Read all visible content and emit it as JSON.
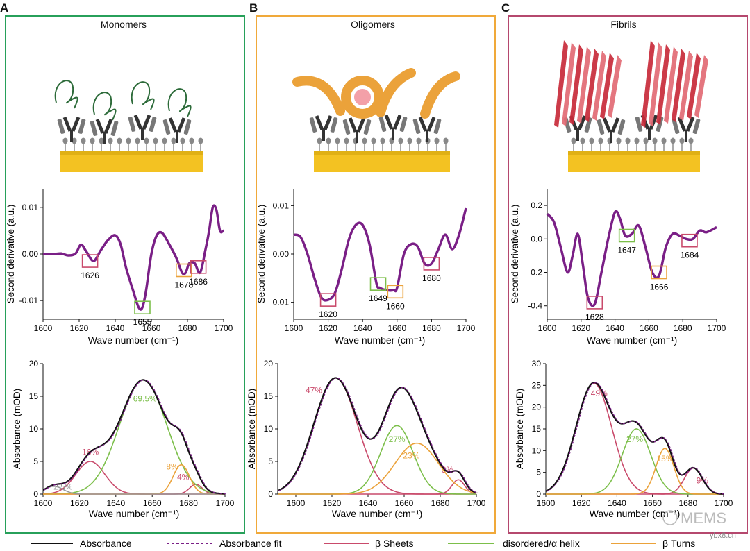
{
  "colors": {
    "sheet": "#c94a6b",
    "helix": "#7cbf4a",
    "turn": "#eba23a",
    "purple": "#7a1f86",
    "dark": "#111111",
    "panelA": "#27a05a",
    "panelB": "#f0a93a",
    "panelC": "#b5486e",
    "gold": "#f3c222",
    "red": "#c82a3a"
  },
  "watermark": {
    "wechat": "MEMS",
    "site": "ybx8.cn"
  },
  "legend": [
    "Absorbance",
    "Absorbance fit",
    "β Sheets",
    "disordered/α helix",
    "β Turns"
  ],
  "panels": [
    {
      "letter": "A",
      "title": "Monomers"
    },
    {
      "letter": "B",
      "title": "Oligomers"
    },
    {
      "letter": "C",
      "title": "Fibrils"
    }
  ],
  "chart_data": [
    {
      "id": "A-second",
      "type": "line",
      "panel": "A",
      "xlabel": "Wave number (cm⁻¹)",
      "ylabel": "Second derivative (a.u.)",
      "xlim": [
        1600,
        1700
      ],
      "ylim": [
        -0.014,
        0.014
      ],
      "xticks": [
        1600,
        1620,
        1640,
        1660,
        1680,
        1700
      ],
      "yticks": [
        0.01,
        0.0,
        -0.01
      ],
      "ytick_labels": [
        "0.01",
        "0.00",
        "-0.01"
      ],
      "x": [
        1600,
        1606,
        1610,
        1614,
        1618,
        1621,
        1624,
        1628,
        1632,
        1636,
        1640,
        1643,
        1646,
        1650,
        1653,
        1655,
        1657,
        1660,
        1663,
        1666,
        1670,
        1674,
        1677,
        1679,
        1681,
        1684,
        1687,
        1690,
        1692,
        1694,
        1696,
        1698,
        1700
      ],
      "y": [
        0.0,
        0.0,
        0.0001,
        -0.0003,
        0.0001,
        0.002,
        0.0005,
        -0.0015,
        0.0008,
        0.003,
        0.004,
        0.002,
        -0.003,
        -0.008,
        -0.0115,
        -0.0115,
        -0.008,
        0.0,
        0.004,
        0.0045,
        0.002,
        -0.001,
        -0.004,
        -0.004,
        -0.002,
        -0.002,
        -0.004,
        0.001,
        0.005,
        0.01,
        0.0095,
        0.005,
        0.005
      ],
      "markers": [
        {
          "label": "1626",
          "x": 1626,
          "y": -0.0015,
          "color": "sheet"
        },
        {
          "label": "1655",
          "x": 1655,
          "y": -0.0115,
          "color": "helix"
        },
        {
          "label": "1678",
          "x": 1678,
          "y": -0.0035,
          "color": "turn"
        },
        {
          "label": "1686",
          "x": 1686,
          "y": -0.0028,
          "color": "sheet"
        }
      ]
    },
    {
      "id": "B-second",
      "type": "line",
      "panel": "B",
      "xlabel": "Wave number (cm⁻¹)",
      "ylabel": "Second derivative (a.u.)",
      "xlim": [
        1600,
        1700
      ],
      "ylim": [
        -0.0135,
        0.0135
      ],
      "xticks": [
        1600,
        1620,
        1640,
        1660,
        1680,
        1700
      ],
      "yticks": [
        0.01,
        0.0,
        -0.01
      ],
      "ytick_labels": [
        "0.01",
        "0.00",
        "-0.01"
      ],
      "x": [
        1600,
        1604,
        1608,
        1612,
        1616,
        1620,
        1624,
        1628,
        1632,
        1636,
        1640,
        1644,
        1648,
        1650,
        1654,
        1658,
        1660,
        1664,
        1668,
        1672,
        1676,
        1680,
        1684,
        1688,
        1692,
        1696,
        1700
      ],
      "y": [
        0.004,
        0.0035,
        0.0,
        -0.005,
        -0.009,
        -0.0095,
        -0.008,
        -0.003,
        0.003,
        0.006,
        0.006,
        0.002,
        -0.006,
        -0.007,
        -0.0075,
        -0.0075,
        -0.007,
        0.0,
        0.002,
        0.0015,
        -0.002,
        -0.002,
        0.001,
        0.004,
        0.001,
        0.004,
        0.0095
      ],
      "markers": [
        {
          "label": "1620",
          "x": 1620,
          "y": -0.0095,
          "color": "sheet"
        },
        {
          "label": "1649",
          "x": 1649,
          "y": -0.0062,
          "color": "helix"
        },
        {
          "label": "1660",
          "x": 1659,
          "y": -0.0078,
          "color": "turn"
        },
        {
          "label": "1680",
          "x": 1680,
          "y": -0.002,
          "color": "sheet"
        }
      ]
    },
    {
      "id": "C-second",
      "type": "line",
      "panel": "C",
      "xlabel": "Wave number (cm⁻¹)",
      "ylabel": "Second derivative (a.u.)",
      "xlim": [
        1600,
        1700
      ],
      "ylim": [
        -0.48,
        0.3
      ],
      "xticks": [
        1600,
        1620,
        1640,
        1660,
        1680,
        1700
      ],
      "yticks": [
        0.2,
        0.0,
        -0.2,
        -0.4
      ],
      "ytick_labels": [
        "0.2",
        "0.0",
        "-0.2",
        "-0.4"
      ],
      "x": [
        1600,
        1604,
        1608,
        1612,
        1615,
        1618,
        1621,
        1624,
        1628,
        1632,
        1636,
        1640,
        1643,
        1646,
        1650,
        1654,
        1658,
        1662,
        1666,
        1670,
        1674,
        1678,
        1682,
        1686,
        1690,
        1694,
        1700
      ],
      "y": [
        0.15,
        0.1,
        -0.05,
        -0.2,
        -0.1,
        0.03,
        -0.15,
        -0.35,
        -0.39,
        -0.2,
        0.0,
        0.16,
        0.12,
        0.02,
        0.03,
        0.08,
        -0.05,
        -0.2,
        -0.22,
        -0.05,
        0.03,
        0.02,
        0.0,
        0.0,
        0.05,
        0.04,
        0.07
      ],
      "markers": [
        {
          "label": "1628",
          "x": 1628,
          "y": -0.38,
          "color": "sheet"
        },
        {
          "label": "1647",
          "x": 1647,
          "y": 0.02,
          "color": "helix"
        },
        {
          "label": "1666",
          "x": 1666,
          "y": -0.2,
          "color": "turn"
        },
        {
          "label": "1684",
          "x": 1684,
          "y": -0.01,
          "color": "sheet"
        }
      ]
    },
    {
      "id": "A-abs",
      "type": "area",
      "panel": "A",
      "xlabel": "Wave number (cm⁻¹)",
      "ylabel": "Absorbance (mOD)",
      "xlim": [
        1600,
        1700
      ],
      "ylim": [
        0,
        20
      ],
      "xticks": [
        1600,
        1620,
        1640,
        1660,
        1680,
        1700
      ],
      "yticks": [
        0,
        5,
        10,
        15,
        20
      ],
      "components": [
        {
          "name": "β Sheets",
          "color": "sheet",
          "peaks": [
            [
              1626,
              5,
              8
            ],
            [
              1684,
              1.5,
              3.5
            ]
          ],
          "labels": [
            {
              "text": "16%",
              "x": 1626,
              "y": 6.0
            },
            {
              "text": "4%",
              "x": 1677,
              "y": 2.2
            }
          ]
        },
        {
          "name": "disordered/α helix",
          "color": "helix",
          "peaks": [
            [
              1655,
              17.5,
              13
            ]
          ],
          "labels": [
            {
              "text": "69.5%",
              "x": 1656,
              "y": 14.2
            }
          ]
        },
        {
          "name": "β Turns",
          "color": "turn",
          "peaks": [
            [
              1676,
              4.5,
              4.5
            ]
          ],
          "labels": [
            {
              "text": "8%",
              "x": 1671,
              "y": 3.8
            }
          ]
        },
        {
          "name": "other",
          "color": "#999999",
          "peaks": [
            [
              1606,
              1.2,
              5
            ]
          ],
          "labels": [
            {
              "text": "2.5%",
              "x": 1611,
              "y": 0.7
            }
          ]
        }
      ]
    },
    {
      "id": "B-abs",
      "type": "area",
      "panel": "B",
      "xlabel": "Wave number (cm⁻¹)",
      "ylabel": "Absorbance (mOD)",
      "xlim": [
        1590,
        1700
      ],
      "ylim": [
        0,
        20
      ],
      "xticks": [
        1600,
        1620,
        1640,
        1660,
        1680,
        1700
      ],
      "yticks": [
        0,
        5,
        10,
        15,
        20
      ],
      "components": [
        {
          "name": "β Sheets",
          "color": "sheet",
          "peaks": [
            [
              1622,
              17.8,
              12
            ],
            [
              1690,
              2.2,
              3.5
            ]
          ],
          "labels": [
            {
              "text": "47%",
              "x": 1610,
              "y": 15.5
            },
            {
              "text": "3%",
              "x": 1684,
              "y": 3.3
            }
          ]
        },
        {
          "name": "disordered/α helix",
          "color": "helix",
          "peaks": [
            [
              1656,
              10.5,
              9
            ]
          ],
          "labels": [
            {
              "text": "27%",
              "x": 1656,
              "y": 8.0
            }
          ]
        },
        {
          "name": "β Turns",
          "color": "turn",
          "peaks": [
            [
              1667,
              7.8,
              12
            ]
          ],
          "labels": [
            {
              "text": "23%",
              "x": 1664,
              "y": 5.5
            }
          ]
        }
      ]
    },
    {
      "id": "C-abs",
      "type": "area",
      "panel": "C",
      "xlabel": "Wave number (cm⁻¹)",
      "ylabel": "Absorbance (mOD)",
      "xlim": [
        1600,
        1700
      ],
      "ylim": [
        0,
        30
      ],
      "xticks": [
        1600,
        1620,
        1640,
        1660,
        1680,
        1700
      ],
      "yticks": [
        0,
        5,
        10,
        15,
        20,
        25,
        30
      ],
      "components": [
        {
          "name": "β Sheets",
          "color": "sheet",
          "peaks": [
            [
              1627,
              25.5,
              10
            ],
            [
              1683,
              6.0,
              5
            ]
          ],
          "labels": [
            {
              "text": "49%",
              "x": 1630,
              "y": 22.5
            },
            {
              "text": "9%",
              "x": 1688,
              "y": 2.5
            }
          ]
        },
        {
          "name": "disordered/α helix",
          "color": "helix",
          "peaks": [
            [
              1651,
              15,
              8
            ]
          ],
          "labels": [
            {
              "text": "27%",
              "x": 1650,
              "y": 12.0
            }
          ]
        },
        {
          "name": "β Turns",
          "color": "turn",
          "peaks": [
            [
              1667,
              10.5,
              5
            ]
          ],
          "labels": [
            {
              "text": "15%",
              "x": 1667,
              "y": 7.5
            }
          ]
        }
      ]
    }
  ]
}
